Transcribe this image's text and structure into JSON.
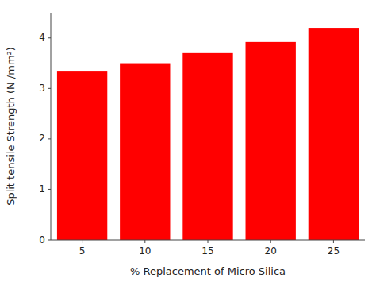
{
  "chart_data": {
    "type": "bar",
    "categories": [
      "5",
      "10",
      "15",
      "20",
      "25"
    ],
    "values": [
      3.35,
      3.5,
      3.7,
      3.92,
      4.2
    ],
    "color": "#ff0000",
    "xlabel": "% Replacement of Micro Silica",
    "ylabel": "Split tensile Strength (N /mm²)",
    "ylim": [
      0,
      4.5
    ],
    "yticks": [
      0,
      1,
      2,
      3,
      4
    ],
    "grid": false
  }
}
